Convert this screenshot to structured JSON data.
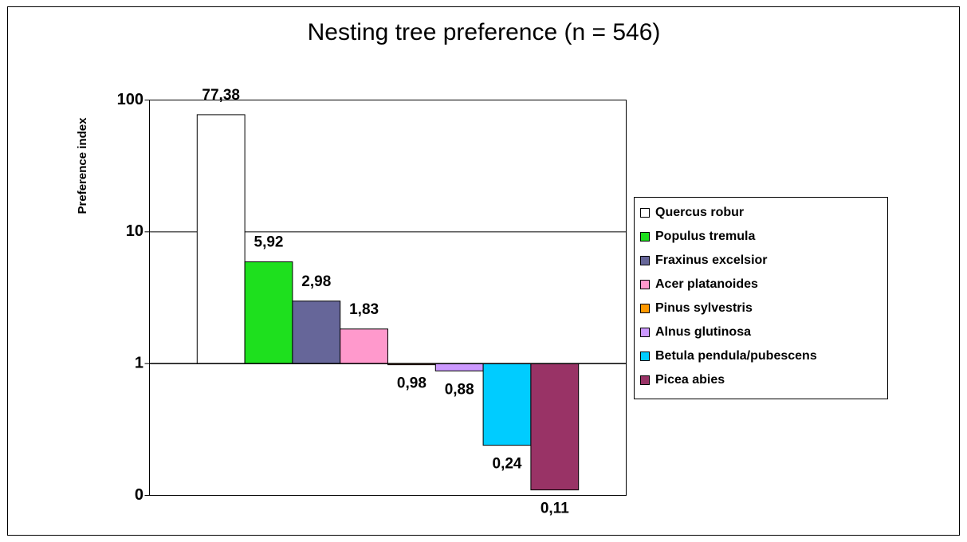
{
  "chart_data": {
    "type": "bar",
    "title": "Nesting tree preference (n = 546)",
    "y_label": "Preference index",
    "categories": [
      null
    ],
    "log_scale": true,
    "ylim": [
      0.1,
      100
    ],
    "yticks": [
      {
        "value": 0.1,
        "label": "0"
      },
      1,
      10,
      100
    ],
    "x_axis_crosses": 1,
    "grid": true,
    "legend": "right",
    "series": [
      {
        "name": "Quercus robur",
        "color": "#ffffff",
        "values": [
          77.38
        ],
        "value_labels": [
          "77,38"
        ]
      },
      {
        "name": "Populus tremula",
        "color": "#1ee01e",
        "values": [
          5.92
        ],
        "value_labels": [
          "5,92"
        ]
      },
      {
        "name": "Fraxinus excelsior",
        "color": "#666699",
        "values": [
          2.98
        ],
        "value_labels": [
          "2,98"
        ]
      },
      {
        "name": "Acer platanoides",
        "color": "#ff99cc",
        "values": [
          1.83
        ],
        "value_labels": [
          "1,83"
        ]
      },
      {
        "name": "Pinus sylvestris",
        "color": "#ff9900",
        "values": [
          0.98
        ],
        "value_labels": [
          "0,98"
        ]
      },
      {
        "name": "Alnus glutinosa",
        "color": "#cc99ff",
        "values": [
          0.88
        ],
        "value_labels": [
          "0,88"
        ]
      },
      {
        "name": "Betula pendula/pubescens",
        "color": "#00ccff",
        "values": [
          0.24
        ],
        "value_labels": [
          "0,24"
        ]
      },
      {
        "name": "Picea abies",
        "color": "#993366",
        "values": [
          0.11
        ],
        "value_labels": [
          "0,11"
        ]
      }
    ]
  }
}
